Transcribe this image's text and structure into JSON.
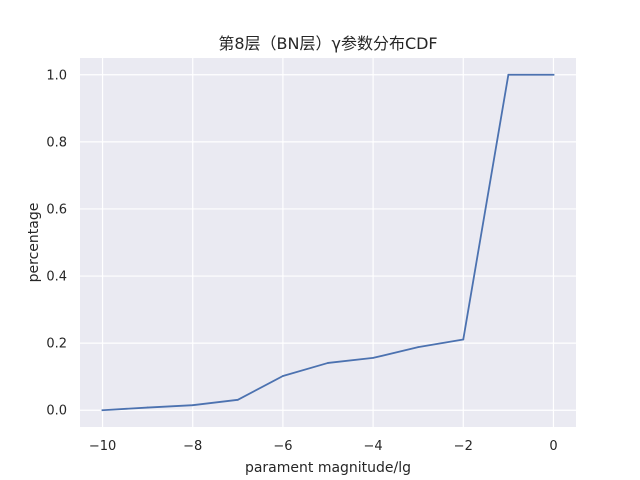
{
  "chart_data": {
    "type": "line",
    "title": "第8层（BN层）γ参数分布CDF",
    "xlabel": "parament magnitude/lg",
    "ylabel": "percentage",
    "xlim": [
      -10.5,
      0.5
    ],
    "ylim": [
      -0.05,
      1.05
    ],
    "xticks": [
      -10,
      -8,
      -6,
      -4,
      -2,
      0
    ],
    "xtick_labels": [
      "−10",
      "−8",
      "−6",
      "−4",
      "−2",
      "0"
    ],
    "yticks": [
      0.0,
      0.2,
      0.4,
      0.6,
      0.8,
      1.0
    ],
    "ytick_labels": [
      "0.0",
      "0.2",
      "0.4",
      "0.6",
      "0.8",
      "1.0"
    ],
    "grid": true,
    "series": [
      {
        "color": "#4c72b0",
        "x": [
          -10,
          -9,
          -8,
          -7,
          -6,
          -5,
          -4,
          -3,
          -2,
          -1,
          0
        ],
        "y": [
          0.0,
          0.008,
          0.015,
          0.031,
          0.102,
          0.141,
          0.156,
          0.188,
          0.211,
          1.0,
          1.0
        ]
      }
    ]
  }
}
